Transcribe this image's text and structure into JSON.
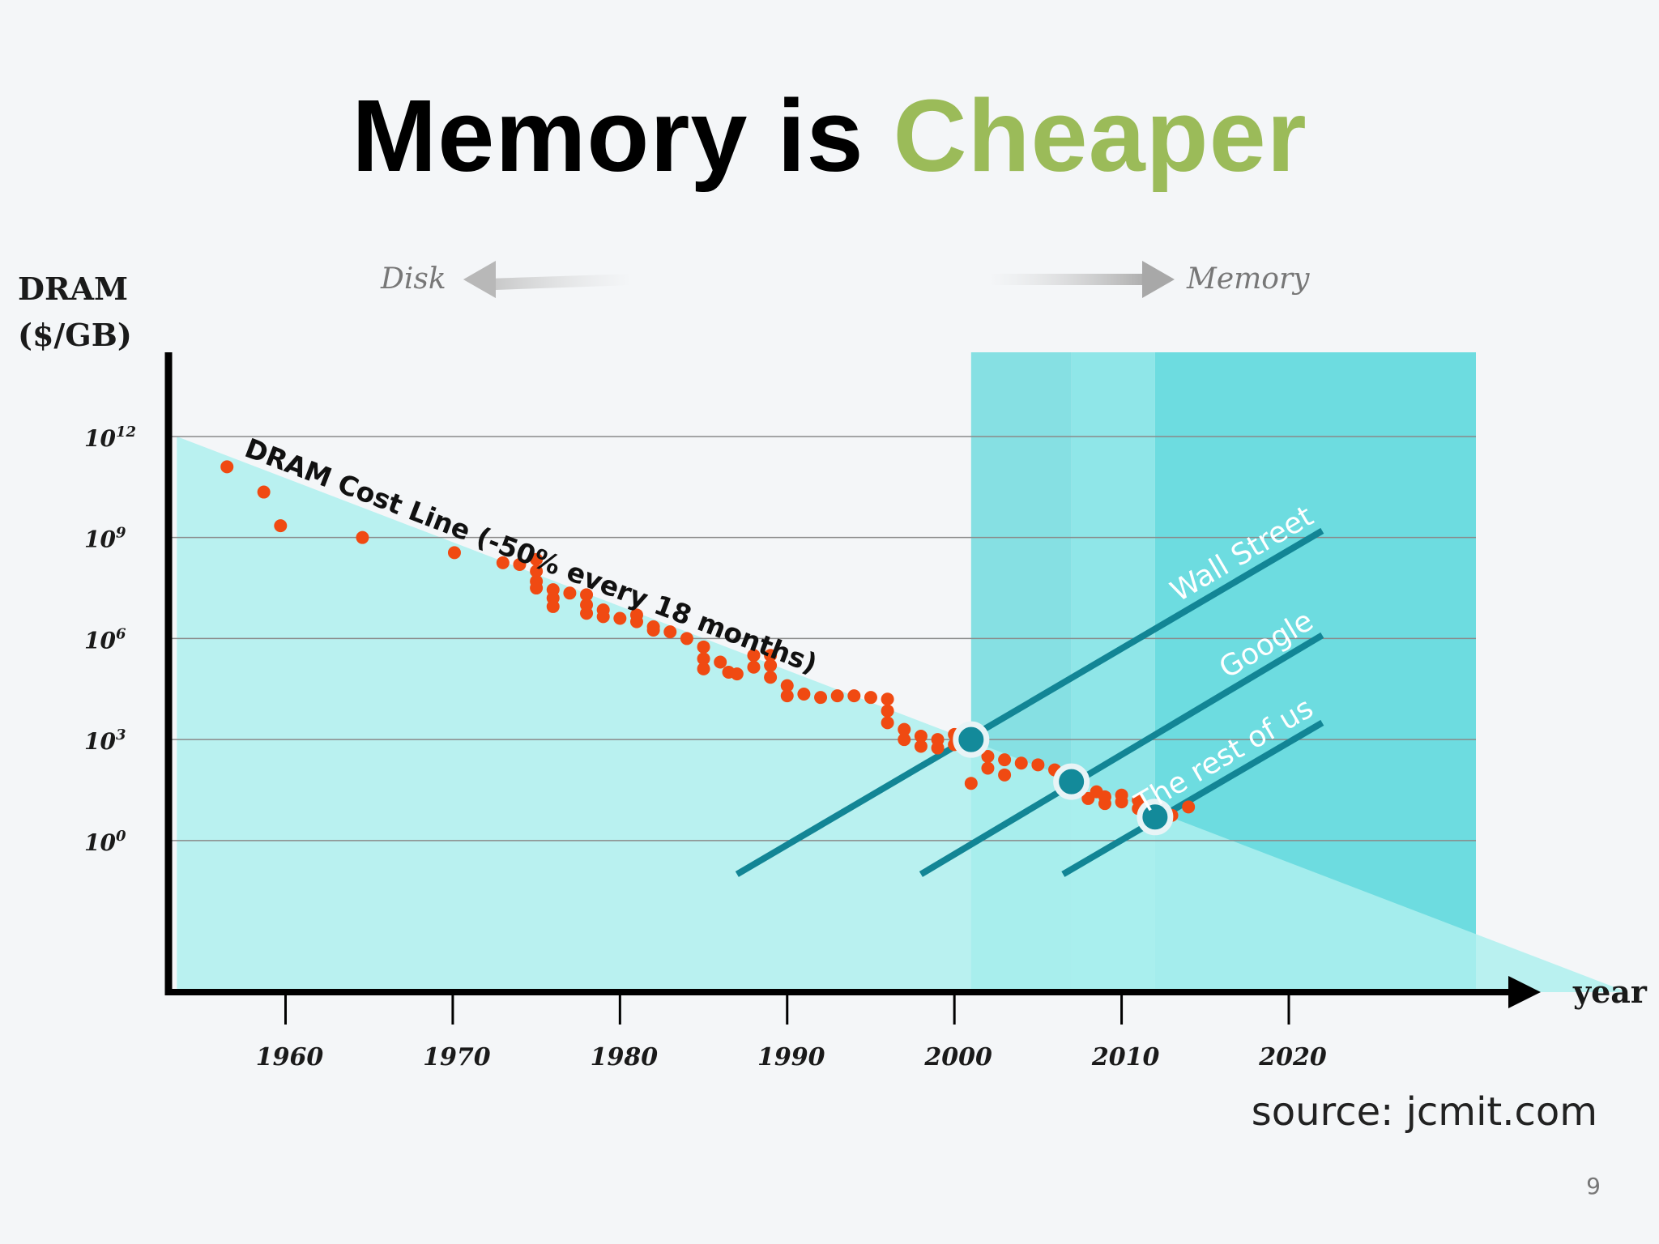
{
  "slide": {
    "title_part1": "Memory is",
    "title_part2": "Cheaper",
    "source": "source: jcmit.com",
    "page_number": "9"
  },
  "colors": {
    "title_accent": "#9bbb59",
    "area_fill": "#aef0ef",
    "band1": "#86e0e3",
    "band2": "#8fe6e8",
    "band3": "#6ddce0",
    "points": "#f04a12",
    "lines": "#128595",
    "markers": "#138a9a"
  },
  "chart_data": {
    "type": "scatter",
    "scale_y": "log",
    "ylabel": [
      "DRAM",
      "($/GB)"
    ],
    "xlabel": "year",
    "xlim": [
      1953,
      2034
    ],
    "ylim_log10": [
      -4.5,
      14.5
    ],
    "x_ticks": [
      1960,
      1970,
      1980,
      1990,
      2000,
      2010,
      2020
    ],
    "x_tick_labels": [
      "1960",
      "1970",
      "1980",
      "1990",
      "2000",
      "2010",
      "2020"
    ],
    "y_ticks_log10": [
      0,
      3,
      6,
      9,
      12
    ],
    "y_tick_labels": [
      {
        "base": "10",
        "exp": "0"
      },
      {
        "base": "10",
        "exp": "3"
      },
      {
        "base": "10",
        "exp": "6"
      },
      {
        "base": "10",
        "exp": "9"
      },
      {
        "base": "10",
        "exp": "12"
      }
    ],
    "grid": true,
    "direction_labels": {
      "left": "Disk",
      "right": "Memory"
    },
    "cost_line": {
      "label": "DRAM Cost Line (-50% every 18 months)",
      "from": [
        1953.5,
        12.0
      ],
      "to": [
        2025,
        -1.6
      ]
    },
    "bands": [
      {
        "x_from": 2001,
        "x_to": 2007
      },
      {
        "x_from": 2007,
        "x_to": 2012
      },
      {
        "x_from": 2012,
        "x_to": 2034
      }
    ],
    "trend_lines": [
      {
        "name": "Wall Street",
        "from": [
          1987,
          -1.0
        ],
        "to": [
          2022,
          9.2
        ]
      },
      {
        "name": "Google",
        "from": [
          1998,
          -1.0
        ],
        "to": [
          2022,
          6.1
        ]
      },
      {
        "name": "The rest of us",
        "from": [
          2006.5,
          -1.0
        ],
        "to": [
          2022,
          3.5
        ]
      }
    ],
    "markers": [
      {
        "x": 2001,
        "y_log10": 3.0
      },
      {
        "x": 2007,
        "y_log10": 1.75
      },
      {
        "x": 2012,
        "y_log10": 0.7
      }
    ],
    "series": [
      {
        "x": [
          1956.5,
          1958.7,
          1959.7,
          1964.6,
          1970.1,
          1973.0,
          1974.0,
          1975.0,
          1975.0,
          1975.0,
          1975.0,
          1976.0,
          1976.0,
          1976.0,
          1977.0,
          1978.0,
          1978.0,
          1978.0,
          1979.0,
          1979.0,
          1980.0,
          1981.0,
          1981.0,
          1982.0,
          1982.0,
          1983.0,
          1984.0,
          1985.0,
          1985.0,
          1985.0,
          1986.0,
          1986.5,
          1987.0,
          1988.0,
          1988.0,
          1989.0,
          1989.0,
          1989.0,
          1990.0,
          1990.0,
          1991.0,
          1992.0,
          1993.0,
          1994.0,
          1995.0,
          1996.0,
          1996.0,
          1996.0,
          1997.0,
          1997.0,
          1998.0,
          1998.0,
          1999.0,
          1999.0,
          2000.0,
          2000.0,
          2001.0,
          2001.0,
          2002.0,
          2002.0,
          2003.0,
          2003.0,
          2004.0,
          2005.0,
          2006.0,
          2006.5,
          2007.5,
          2008.0,
          2008.5,
          2009.0,
          2009.0,
          2010.0,
          2010.0,
          2011.0,
          2011.0,
          2012.0,
          2013.0,
          2014.0
        ],
        "y_log10": [
          11.1,
          10.35,
          9.35,
          9.0,
          8.55,
          8.25,
          8.2,
          8.35,
          8.0,
          7.7,
          7.5,
          7.45,
          7.2,
          6.95,
          7.35,
          7.3,
          7.0,
          6.75,
          6.85,
          6.65,
          6.6,
          6.7,
          6.5,
          6.35,
          6.25,
          6.2,
          6.0,
          5.75,
          5.4,
          5.1,
          5.3,
          5.0,
          4.95,
          5.5,
          5.15,
          5.5,
          5.2,
          4.85,
          4.6,
          4.3,
          4.35,
          4.25,
          4.3,
          4.3,
          4.25,
          4.2,
          3.85,
          3.5,
          3.3,
          3.0,
          3.1,
          2.8,
          3.0,
          2.75,
          3.15,
          2.85,
          2.95,
          1.7,
          2.5,
          2.15,
          2.4,
          1.95,
          2.3,
          2.25,
          2.1,
          1.85,
          1.7,
          1.25,
          1.45,
          1.3,
          1.1,
          1.35,
          1.15,
          1.2,
          0.95,
          0.9,
          0.75,
          1.0
        ]
      }
    ]
  }
}
